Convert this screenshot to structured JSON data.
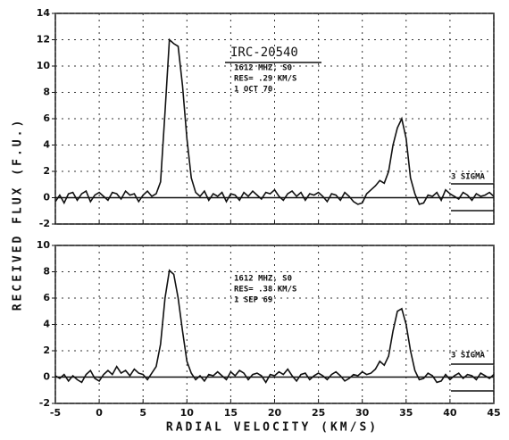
{
  "chart_data": [
    {
      "type": "line",
      "ylabel": "RECEIVED FLUX (F.U.)",
      "annotations": [
        "IRC-20540",
        "1612 MHZ, S0",
        "RES= .29 KM/S",
        "1 OCT 70"
      ],
      "sigma_label": "3 SIGMA",
      "xlim": [
        -5,
        45
      ],
      "xticks": [
        -5,
        0,
        5,
        10,
        15,
        20,
        25,
        30,
        35,
        40,
        45
      ],
      "ylim": [
        -2,
        14
      ],
      "yticks": [
        -2,
        0,
        2,
        4,
        6,
        8,
        10,
        12,
        14
      ],
      "grid": true,
      "color": "#111111",
      "x": [
        -5,
        -4.5,
        -4,
        -3.5,
        -3,
        -2.5,
        -2,
        -1.5,
        -1,
        -0.5,
        0,
        0.5,
        1,
        1.5,
        2,
        2.5,
        3,
        3.5,
        4,
        4.5,
        5,
        5.5,
        6,
        6.5,
        7,
        7.5,
        8,
        8.5,
        9,
        9.5,
        10,
        10.5,
        11,
        11.5,
        12,
        12.5,
        13,
        13.5,
        14,
        14.5,
        15,
        15.5,
        16,
        16.5,
        17,
        17.5,
        18,
        18.5,
        19,
        19.5,
        20,
        20.5,
        21,
        21.5,
        22,
        22.5,
        23,
        23.5,
        24,
        24.5,
        25,
        25.5,
        26,
        26.5,
        27,
        27.5,
        28,
        28.5,
        29,
        29.5,
        30,
        30.5,
        31,
        31.5,
        32,
        32.5,
        33,
        33.5,
        34,
        34.5,
        35,
        35.5,
        36,
        36.5,
        37,
        37.5,
        38,
        38.5,
        39,
        39.5,
        40,
        40.5,
        41,
        41.5,
        42,
        42.5,
        43,
        43.5,
        44,
        44.5,
        45
      ],
      "values": [
        -0.3,
        0.2,
        -0.4,
        0.3,
        0.4,
        -0.2,
        0.3,
        0.5,
        -0.3,
        0.2,
        0.4,
        0.1,
        -0.2,
        0.4,
        0.3,
        -0.1,
        0.5,
        0.2,
        0.3,
        -0.3,
        0.2,
        0.5,
        0.1,
        0.3,
        1.2,
        6.5,
        12,
        11.7,
        11.5,
        8.5,
        4.5,
        1.5,
        0.4,
        0.1,
        0.5,
        -0.2,
        0.3,
        0.1,
        0.4,
        -0.3,
        0.3,
        0.2,
        -0.2,
        0.4,
        0.1,
        0.5,
        0.2,
        -0.1,
        0.4,
        0.3,
        0.6,
        0.1,
        -0.2,
        0.3,
        0.5,
        0.1,
        0.4,
        -0.2,
        0.3,
        0.2,
        0.4,
        0.1,
        -0.3,
        0.3,
        0.2,
        -0.2,
        0.4,
        0.1,
        -0.3,
        -0.5,
        -0.4,
        0.3,
        0.6,
        0.9,
        1.3,
        1.1,
        2,
        4,
        5.3,
        6,
        4.5,
        1.5,
        0.3,
        -0.5,
        -0.4,
        0.2,
        0.1,
        0.4,
        -0.2,
        0.6,
        0.3,
        0.1,
        -0.1,
        0.4,
        0.2,
        -0.2,
        0.3,
        0.1,
        0.2,
        0.4,
        0.1
      ]
    },
    {
      "type": "line",
      "xlabel": "RADIAL VELOCITY (KM/S)",
      "annotations": [
        "1612 MHZ, S0",
        "RES= .38 KM/S",
        "1 SEP 69"
      ],
      "sigma_label": "3 SIGMA",
      "xlim": [
        -5,
        45
      ],
      "xticks": [
        -5,
        0,
        5,
        10,
        15,
        20,
        25,
        30,
        35,
        40,
        45
      ],
      "ylim": [
        -2,
        10
      ],
      "yticks": [
        -2,
        0,
        2,
        4,
        6,
        8,
        10
      ],
      "grid": true,
      "color": "#111111",
      "x": [
        -5,
        -4.5,
        -4,
        -3.5,
        -3,
        -2.5,
        -2,
        -1.5,
        -1,
        -0.5,
        0,
        0.5,
        1,
        1.5,
        2,
        2.5,
        3,
        3.5,
        4,
        4.5,
        5,
        5.5,
        6,
        6.5,
        7,
        7.5,
        8,
        8.5,
        9,
        9.5,
        10,
        10.5,
        11,
        11.5,
        12,
        12.5,
        13,
        13.5,
        14,
        14.5,
        15,
        15.5,
        16,
        16.5,
        17,
        17.5,
        18,
        18.5,
        19,
        19.5,
        20,
        20.5,
        21,
        21.5,
        22,
        22.5,
        23,
        23.5,
        24,
        24.5,
        25,
        25.5,
        26,
        26.5,
        27,
        27.5,
        28,
        28.5,
        29,
        29.5,
        30,
        30.5,
        31,
        31.5,
        32,
        32.5,
        33,
        33.5,
        34,
        34.5,
        35,
        35.5,
        36,
        36.5,
        37,
        37.5,
        38,
        38.5,
        39,
        39.5,
        40,
        40.5,
        41,
        41.5,
        42,
        42.5,
        43,
        43.5,
        44,
        44.5,
        45
      ],
      "values": [
        0.1,
        -0.1,
        0.2,
        -0.3,
        0.1,
        -0.2,
        -0.4,
        0.2,
        0.5,
        -0.1,
        -0.3,
        0.2,
        0.5,
        0.2,
        0.8,
        0.3,
        0.5,
        0.1,
        0.6,
        0.3,
        0.2,
        -0.2,
        0.3,
        0.8,
        2.5,
        6,
        8.1,
        7.8,
        6,
        3.5,
        1.2,
        0.3,
        -0.2,
        0.1,
        -0.3,
        0.2,
        0.1,
        0.4,
        0.1,
        -0.2,
        0.4,
        0.1,
        0.5,
        0.3,
        -0.2,
        0.2,
        0.3,
        0.1,
        -0.4,
        0.2,
        0.1,
        0.4,
        0.2,
        0.6,
        0.1,
        -0.3,
        0.2,
        0.3,
        -0.2,
        0.1,
        0.3,
        0.1,
        -0.2,
        0.2,
        0.4,
        0.1,
        -0.3,
        -0.1,
        0.2,
        0.1,
        0.4,
        0.2,
        0.3,
        0.6,
        1.2,
        0.9,
        1.6,
        3.5,
        5,
        5.2,
        4,
        2,
        0.5,
        -0.2,
        -0.1,
        0.3,
        0.1,
        -0.4,
        -0.3,
        0.2,
        -0.2,
        0.1,
        0.3,
        -0.1,
        0.2,
        0.1,
        -0.2,
        0.3,
        0.1,
        -0.1,
        0.2
      ]
    }
  ]
}
